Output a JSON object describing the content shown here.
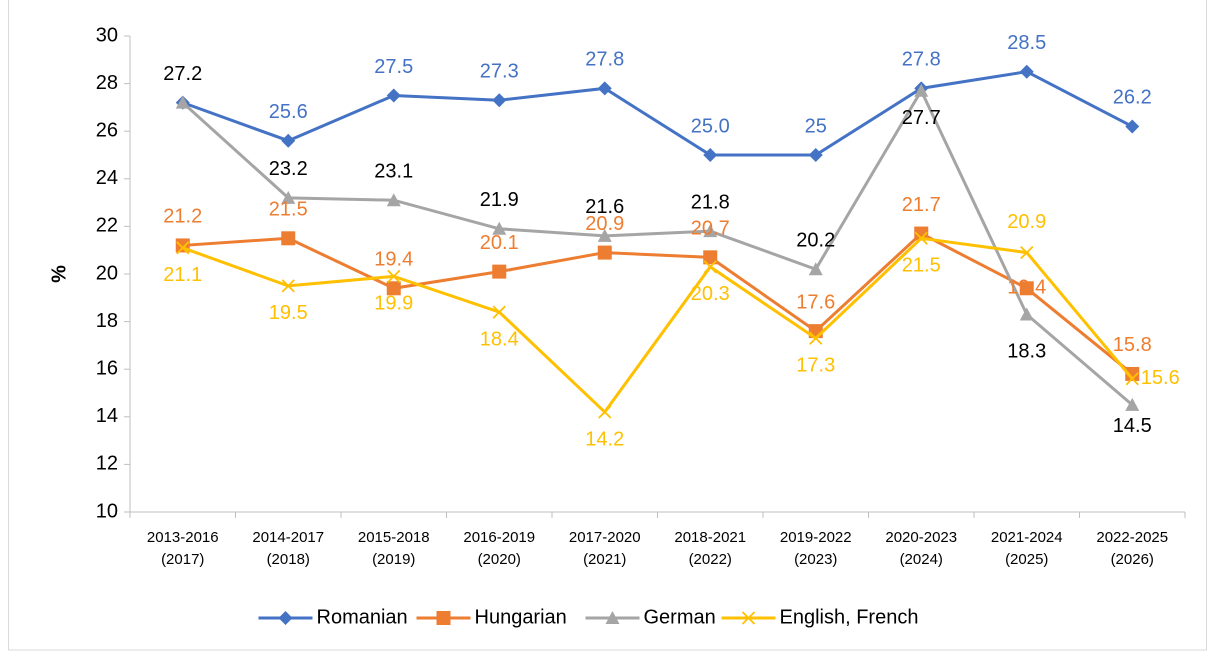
{
  "chart_data": {
    "type": "line",
    "y_label": "%",
    "categories": [
      "2013-2016 (2017)",
      "2014-2017 (2018)",
      "2015-2018 (2019)",
      "2016-2019 (2020)",
      "2017-2020 (2021)",
      "2018-2021 (2022)",
      "2019-2022 (2023)",
      "2020-2023 (2024)",
      "2021-2024 (2025)",
      "2022-2025 (2026)"
    ],
    "series": [
      {
        "name": "Romanian",
        "color": "#4472c4",
        "marker": "diamond",
        "label_color": "#4472c4",
        "values": [
          27.2,
          25.6,
          27.5,
          27.3,
          27.8,
          25.0,
          25,
          27.8,
          28.5,
          26.2
        ],
        "value_labels": [
          null,
          "25.6",
          "27.5",
          "27.3",
          "27.8",
          "25.0",
          "25",
          "27.8",
          "28.5",
          "26.2"
        ]
      },
      {
        "name": "Hungarian",
        "color": "#ed7d31",
        "marker": "square",
        "label_color": "#ed7d31",
        "values": [
          21.2,
          21.5,
          19.4,
          20.1,
          20.9,
          20.7,
          17.6,
          21.7,
          19.4,
          15.8
        ],
        "value_labels": [
          "21.2",
          "21.5",
          "19.4",
          "20.1",
          "20.9",
          "20.7",
          "17.6",
          "21.7",
          "19.4",
          "15.8"
        ]
      },
      {
        "name": "German",
        "color": "#a5a5a5",
        "marker": "triangle",
        "label_color": "#000000",
        "values": [
          27.2,
          23.2,
          23.1,
          21.9,
          21.6,
          21.8,
          20.2,
          27.7,
          18.3,
          14.5
        ],
        "value_labels": [
          "27.2",
          "23.2",
          "23.1",
          "21.9",
          "21.6",
          "21.8",
          "20.2",
          "27.7",
          "18.3",
          "14.5"
        ]
      },
      {
        "name": "English, French",
        "color": "#ffc000",
        "marker": "x",
        "label_color": "#ffc000",
        "values": [
          21.1,
          19.5,
          19.9,
          18.4,
          14.2,
          20.3,
          17.3,
          21.5,
          20.9,
          15.6
        ],
        "value_labels": [
          "21.1",
          "19.5",
          "19.9",
          "18.4",
          "14.2",
          "20.3",
          "17.3",
          "21.5",
          "20.9",
          "15.6"
        ]
      }
    ],
    "ylim": [
      10,
      30
    ],
    "yticks": [
      10,
      12,
      14,
      16,
      18,
      20,
      22,
      24,
      26,
      28,
      30
    ],
    "grid": false,
    "legend": "bottom"
  }
}
